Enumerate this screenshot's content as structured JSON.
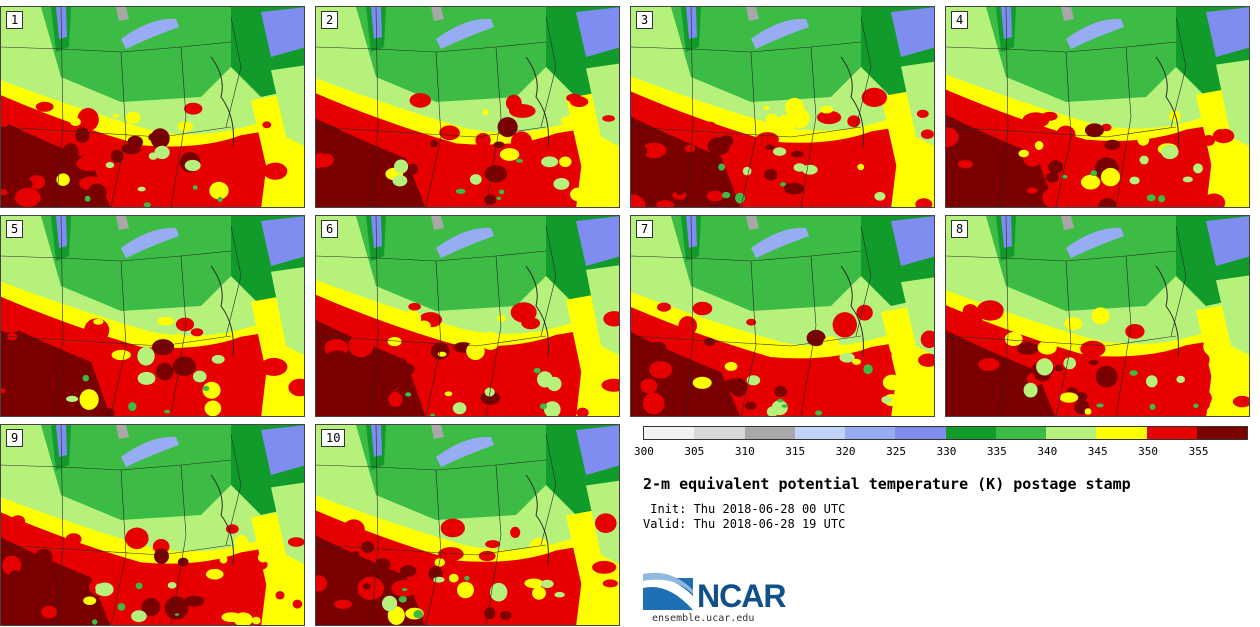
{
  "title": "2-m equivalent potential temperature (K) postage stamp",
  "init": "Init: Thu 2018-06-28 00 UTC",
  "valid": "Valid: Thu 2018-06-28 19 UTC",
  "logo_text": "NCAR",
  "logo_url": "ensemble.ucar.edu",
  "panels": [
    {
      "label": "1"
    },
    {
      "label": "2"
    },
    {
      "label": "3"
    },
    {
      "label": "4"
    },
    {
      "label": "5"
    },
    {
      "label": "6"
    },
    {
      "label": "7"
    },
    {
      "label": "8"
    },
    {
      "label": "9"
    },
    {
      "label": "10"
    }
  ],
  "colorbar": {
    "levels": [
      "300",
      "305",
      "310",
      "315",
      "320",
      "325",
      "330",
      "335",
      "340",
      "345",
      "350",
      "355"
    ],
    "colors": [
      "#f2f2f2",
      "#d8d8d8",
      "#a8a8a8",
      "#c3d2f8",
      "#98acf3",
      "#7f8df0",
      "#119b2a",
      "#3cbb45",
      "#b6f27b",
      "#ffff00",
      "#e60000",
      "#7a0000"
    ]
  },
  "colors": {
    "dark_red": "#7a0000",
    "red": "#e60000",
    "yellow": "#ffff00",
    "light_green": "#b6f27b",
    "mid_green": "#3cbb45",
    "dark_green": "#119b2a",
    "blue": "#7f8df0",
    "light_blue": "#98acf3",
    "gray": "#a8a8a8"
  }
}
